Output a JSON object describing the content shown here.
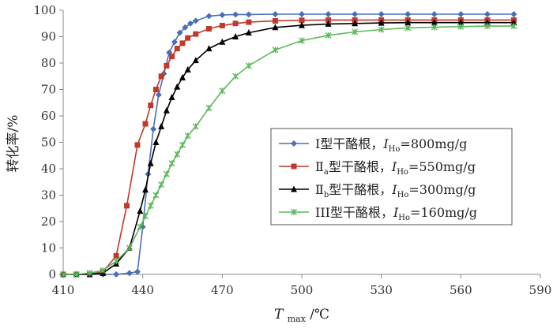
{
  "chart_data": {
    "type": "line",
    "xlabel_italic": "T",
    "xlabel_sub": "max",
    "xlabel_unit": "/℃",
    "ylabel": "转化率/%",
    "xlim": [
      410,
      590
    ],
    "ylim": [
      0,
      100
    ],
    "xticks": [
      410,
      440,
      470,
      500,
      530,
      560,
      590
    ],
    "yticks": [
      0,
      10,
      20,
      30,
      40,
      50,
      60,
      70,
      80,
      90,
      100
    ],
    "grid": false,
    "legend_position": "center-right",
    "series": [
      {
        "name_parts": [
          "Ⅰ型干酪根，",
          "I",
          "Ho",
          "=800mg/g"
        ],
        "sub_after_roman": "",
        "color": "#4a6fb5",
        "marker": "diamond",
        "points": [
          [
            410,
            0
          ],
          [
            415,
            0
          ],
          [
            420,
            0
          ],
          [
            425,
            0
          ],
          [
            430,
            0
          ],
          [
            435,
            0.5
          ],
          [
            438,
            1
          ],
          [
            440,
            18
          ],
          [
            442,
            38
          ],
          [
            444,
            55
          ],
          [
            446,
            68
          ],
          [
            448,
            76
          ],
          [
            450,
            84
          ],
          [
            452,
            88
          ],
          [
            454,
            91.5
          ],
          [
            456,
            93.5
          ],
          [
            458,
            95
          ],
          [
            460,
            96
          ],
          [
            465,
            97.8
          ],
          [
            470,
            98.2
          ],
          [
            475,
            98.4
          ],
          [
            480,
            98.4
          ],
          [
            490,
            98.5
          ],
          [
            500,
            98.5
          ],
          [
            510,
            98.5
          ],
          [
            520,
            98.5
          ],
          [
            530,
            98.5
          ],
          [
            540,
            98.5
          ],
          [
            550,
            98.5
          ],
          [
            560,
            98.5
          ],
          [
            570,
            98.5
          ],
          [
            580,
            98.5
          ]
        ]
      },
      {
        "name_parts": [
          "Ⅱ",
          "I",
          "Ho",
          "=550mg/g"
        ],
        "sub_after_roman": "a",
        "name_mid": "型干酪根，",
        "color": "#c0392b",
        "marker": "square",
        "points": [
          [
            410,
            0
          ],
          [
            415,
            0
          ],
          [
            420,
            0
          ],
          [
            425,
            1
          ],
          [
            430,
            7
          ],
          [
            434,
            26
          ],
          [
            438,
            49
          ],
          [
            441,
            57
          ],
          [
            443,
            64
          ],
          [
            445,
            70
          ],
          [
            447,
            75
          ],
          [
            449,
            79
          ],
          [
            451,
            82.5
          ],
          [
            453,
            85.5
          ],
          [
            455,
            87.5
          ],
          [
            457,
            89.5
          ],
          [
            460,
            91
          ],
          [
            465,
            93
          ],
          [
            470,
            94.2
          ],
          [
            475,
            95
          ],
          [
            480,
            95.5
          ],
          [
            490,
            96
          ],
          [
            500,
            96.2
          ],
          [
            510,
            96.3
          ],
          [
            520,
            96.3
          ],
          [
            530,
            96.3
          ],
          [
            540,
            96.3
          ],
          [
            550,
            96.3
          ],
          [
            560,
            96.3
          ],
          [
            570,
            96.3
          ],
          [
            580,
            96.3
          ]
        ]
      },
      {
        "name_parts": [
          "Ⅱ",
          "I",
          "Ho",
          "=300mg/g"
        ],
        "sub_after_roman": "b",
        "name_mid": "型干酪根，",
        "color": "#000000",
        "marker": "triangle",
        "points": [
          [
            410,
            0
          ],
          [
            415,
            0
          ],
          [
            420,
            0
          ],
          [
            425,
            0.5
          ],
          [
            430,
            4
          ],
          [
            435,
            10
          ],
          [
            439,
            24
          ],
          [
            441,
            32
          ],
          [
            443,
            42
          ],
          [
            445,
            50
          ],
          [
            447,
            56
          ],
          [
            449,
            62
          ],
          [
            451,
            67
          ],
          [
            453,
            71
          ],
          [
            455,
            74.5
          ],
          [
            457,
            77.5
          ],
          [
            460,
            81
          ],
          [
            465,
            85.5
          ],
          [
            470,
            88
          ],
          [
            475,
            90
          ],
          [
            480,
            91.5
          ],
          [
            490,
            93.5
          ],
          [
            500,
            94.3
          ],
          [
            510,
            94.8
          ],
          [
            520,
            95
          ],
          [
            530,
            95.2
          ],
          [
            540,
            95.3
          ],
          [
            550,
            95.3
          ],
          [
            560,
            95.3
          ],
          [
            570,
            95.3
          ],
          [
            580,
            95.3
          ]
        ]
      },
      {
        "name_parts": [
          "III型干酪根，",
          "I",
          "Ho",
          "=160mg/g"
        ],
        "sub_after_roman": "",
        "color": "#5cb85c",
        "marker": "x",
        "points": [
          [
            410,
            0
          ],
          [
            415,
            0
          ],
          [
            420,
            0.5
          ],
          [
            425,
            1.5
          ],
          [
            430,
            5
          ],
          [
            435,
            10
          ],
          [
            439,
            18
          ],
          [
            441,
            22
          ],
          [
            443,
            26
          ],
          [
            445,
            30
          ],
          [
            447,
            34
          ],
          [
            449,
            38
          ],
          [
            451,
            42
          ],
          [
            453,
            45.5
          ],
          [
            455,
            49
          ],
          [
            457,
            52.5
          ],
          [
            460,
            56
          ],
          [
            465,
            63
          ],
          [
            470,
            69.5
          ],
          [
            475,
            75
          ],
          [
            480,
            79
          ],
          [
            490,
            85
          ],
          [
            500,
            88.5
          ],
          [
            510,
            90.5
          ],
          [
            520,
            91.8
          ],
          [
            530,
            92.7
          ],
          [
            540,
            93.3
          ],
          [
            550,
            93.6
          ],
          [
            560,
            93.8
          ],
          [
            570,
            94
          ],
          [
            580,
            94
          ]
        ]
      }
    ]
  }
}
